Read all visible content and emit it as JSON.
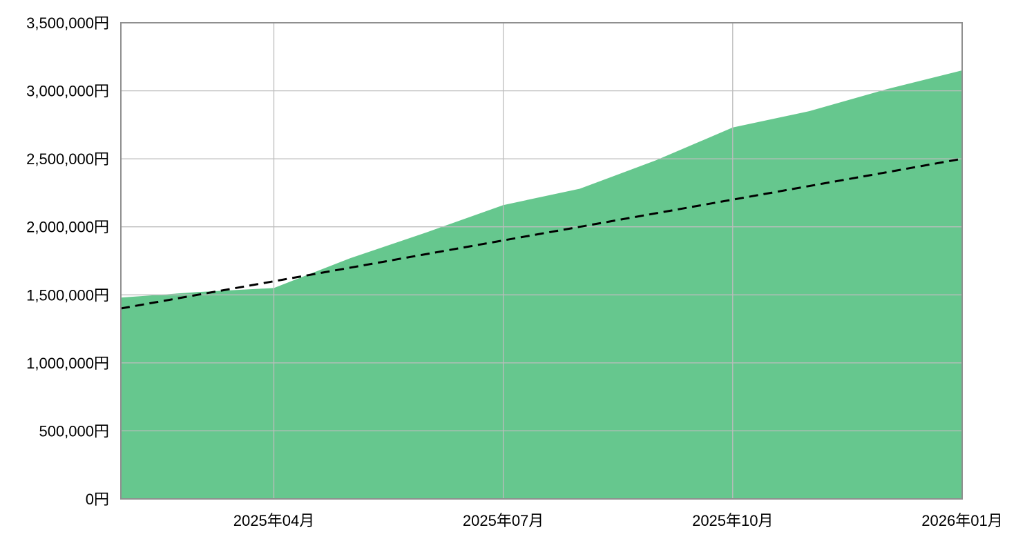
{
  "chart_data": {
    "type": "area",
    "title": "",
    "xlabel": "",
    "ylabel": "",
    "x": [
      "2025年02月",
      "2025年03月",
      "2025年04月",
      "2025年05月",
      "2025年06月",
      "2025年07月",
      "2025年08月",
      "2025年09月",
      "2025年10月",
      "2025年11月",
      "2025年12月",
      "2026年01月"
    ],
    "series": [
      {
        "name": "actual-amount-area",
        "type": "area",
        "color": "#66c78e",
        "values": [
          1480000,
          1520000,
          1550000,
          1770000,
          1960000,
          2160000,
          2280000,
          2490000,
          2730000,
          2850000,
          3010000,
          3150000
        ]
      },
      {
        "name": "projection-dashed-line",
        "type": "line",
        "style": "dashed",
        "color": "#000000",
        "values": [
          1400000,
          1500000,
          1600000,
          1700000,
          1800000,
          1900000,
          2000000,
          2100000,
          2200000,
          2300000,
          2400000,
          2500000
        ]
      }
    ],
    "ylim": [
      0,
      3500000
    ],
    "grid": true,
    "legend_position": "none",
    "currency_suffix": "円",
    "y_ticks": [
      {
        "value": 0,
        "label": "0円"
      },
      {
        "value": 500000,
        "label": "500,000円"
      },
      {
        "value": 1000000,
        "label": "1,000,000円"
      },
      {
        "value": 1500000,
        "label": "1,500,000円"
      },
      {
        "value": 2000000,
        "label": "2,000,000円"
      },
      {
        "value": 2500000,
        "label": "2,500,000円"
      },
      {
        "value": 3000000,
        "label": "3,000,000円"
      },
      {
        "value": 3500000,
        "label": "3,500,000円"
      }
    ],
    "x_ticks": [
      {
        "index": 2,
        "label": "2025年04月"
      },
      {
        "index": 5,
        "label": "2025年07月"
      },
      {
        "index": 8,
        "label": "2025年10月"
      },
      {
        "index": 11,
        "label": "2026年01月"
      }
    ]
  },
  "colors": {
    "background": "#ffffff",
    "area_fill": "#66c78e",
    "grid_line": "#bdbdbd",
    "plot_border": "#8f8f8f",
    "dashed_line": "#000000",
    "tick_text": "#000000"
  }
}
